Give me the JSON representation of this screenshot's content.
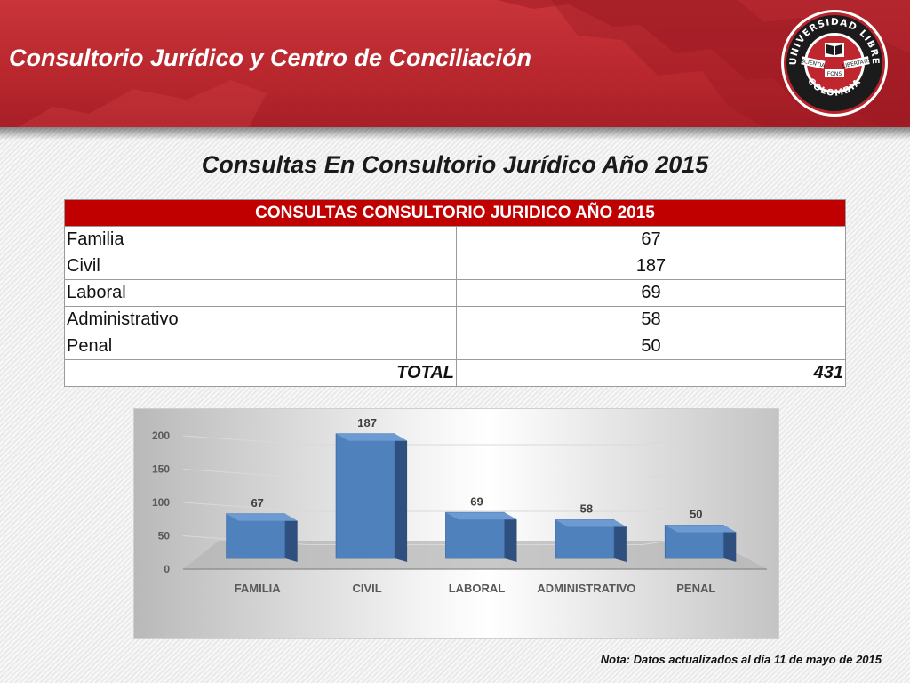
{
  "header": {
    "title": "Consultorio Jurídico y Centro de Conciliación",
    "logo": {
      "top_text": "UNIVERSIDAD LIBRE",
      "bottom_text": "COLOMBIA",
      "mottos": [
        "SCIENTIA",
        "FONS",
        "LIBERTATIS"
      ],
      "icon": "book-seal-icon"
    }
  },
  "slide_title": "Consultas En Consultorio Jurídico Año 2015",
  "table": {
    "header": "CONSULTAS CONSULTORIO JURIDICO AÑO 2015",
    "rows": [
      {
        "label": "Familia",
        "value": "67"
      },
      {
        "label": "Civil",
        "value": "187"
      },
      {
        "label": "Laboral",
        "value": "69"
      },
      {
        "label": "Administrativo",
        "value": "58"
      },
      {
        "label": "Penal",
        "value": "50"
      }
    ],
    "total_label": "TOTAL",
    "total_value": "431"
  },
  "chart_data": {
    "type": "bar",
    "style": "3d-column",
    "categories": [
      "FAMILIA",
      "CIVIL",
      "LABORAL",
      "ADMINISTRATIVO",
      "PENAL"
    ],
    "values": [
      67,
      187,
      69,
      58,
      50
    ],
    "data_labels": [
      "67",
      "187",
      "69",
      "58",
      "50"
    ],
    "yticks": [
      "0",
      "50",
      "100",
      "150",
      "200"
    ],
    "ylim": [
      0,
      200
    ],
    "grid": true,
    "legend": "none",
    "bar_color": "#4f81bd"
  },
  "note": "Nota: Datos actualizados al día 11 de mayo de 2015",
  "colors": {
    "banner_red": "#b9272e",
    "table_header_red": "#c00000"
  }
}
